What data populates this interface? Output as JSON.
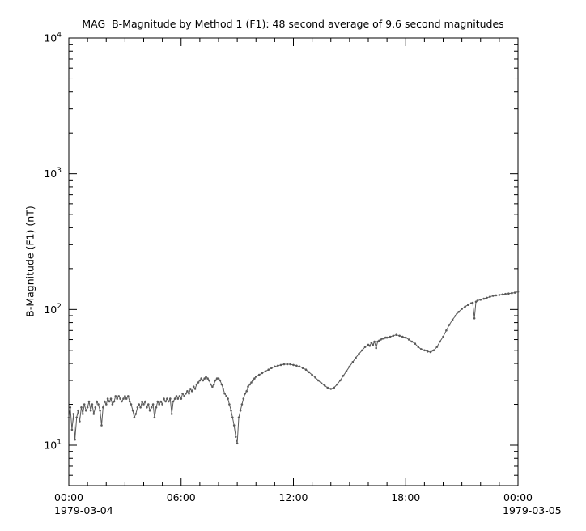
{
  "title": "MAG  B-Magnitude by Method 1 (F1): 48 second average of 9.6 second magnitudes",
  "chart_data": {
    "type": "line",
    "marker": "point",
    "title": "MAG  B-Magnitude by Method 1 (F1): 48 second average of 9.6 second magnitudes",
    "ylabel": "B-Magnitude (F1) (nT)",
    "xlabel": "",
    "x_start_date": "1979-03-04",
    "x_end_date": "1979-03-05",
    "x_unit": "hours since 1979-03-04 00:00",
    "xlim": [
      0,
      24
    ],
    "y_scale": "log",
    "ylim": [
      5,
      10000
    ],
    "grid": "off",
    "series_color": "#5a5a5a",
    "axis_color": "#000000",
    "x_ticks": [
      {
        "t": 0,
        "label": "00:00"
      },
      {
        "t": 6,
        "label": "06:00"
      },
      {
        "t": 12,
        "label": "12:00"
      },
      {
        "t": 18,
        "label": "18:00"
      },
      {
        "t": 24,
        "label": "00:00"
      }
    ],
    "y_ticks": [
      {
        "exp": 1,
        "base": "10"
      },
      {
        "exp": 2,
        "base": "10"
      },
      {
        "exp": 3,
        "base": "10"
      },
      {
        "exp": 4,
        "base": "10"
      }
    ],
    "points": [
      [
        0.0,
        16
      ],
      [
        0.08,
        19
      ],
      [
        0.17,
        13
      ],
      [
        0.25,
        17
      ],
      [
        0.33,
        11
      ],
      [
        0.42,
        16
      ],
      [
        0.5,
        18
      ],
      [
        0.58,
        15
      ],
      [
        0.67,
        19
      ],
      [
        0.75,
        17
      ],
      [
        0.83,
        20
      ],
      [
        0.92,
        18
      ],
      [
        1.0,
        19
      ],
      [
        1.08,
        21
      ],
      [
        1.17,
        18
      ],
      [
        1.25,
        20
      ],
      [
        1.33,
        17
      ],
      [
        1.42,
        19
      ],
      [
        1.5,
        21
      ],
      [
        1.58,
        20
      ],
      [
        1.67,
        18
      ],
      [
        1.75,
        14
      ],
      [
        1.83,
        19
      ],
      [
        1.92,
        21
      ],
      [
        2.0,
        20
      ],
      [
        2.08,
        22
      ],
      [
        2.17,
        21
      ],
      [
        2.25,
        22
      ],
      [
        2.33,
        20
      ],
      [
        2.42,
        21
      ],
      [
        2.5,
        23
      ],
      [
        2.58,
        22
      ],
      [
        2.67,
        23
      ],
      [
        2.75,
        22
      ],
      [
        2.83,
        21
      ],
      [
        2.92,
        22
      ],
      [
        3.0,
        23
      ],
      [
        3.08,
        22
      ],
      [
        3.17,
        23
      ],
      [
        3.25,
        21
      ],
      [
        3.33,
        20
      ],
      [
        3.42,
        18
      ],
      [
        3.5,
        16
      ],
      [
        3.58,
        17
      ],
      [
        3.67,
        19
      ],
      [
        3.75,
        20
      ],
      [
        3.83,
        19
      ],
      [
        3.92,
        21
      ],
      [
        4.0,
        20
      ],
      [
        4.08,
        21
      ],
      [
        4.17,
        19
      ],
      [
        4.25,
        20
      ],
      [
        4.33,
        18
      ],
      [
        4.42,
        19
      ],
      [
        4.5,
        20
      ],
      [
        4.58,
        16
      ],
      [
        4.67,
        19
      ],
      [
        4.75,
        21
      ],
      [
        4.83,
        20
      ],
      [
        4.92,
        21
      ],
      [
        5.0,
        20
      ],
      [
        5.08,
        22
      ],
      [
        5.17,
        21
      ],
      [
        5.25,
        22
      ],
      [
        5.33,
        21
      ],
      [
        5.42,
        22
      ],
      [
        5.5,
        17
      ],
      [
        5.58,
        21
      ],
      [
        5.67,
        22
      ],
      [
        5.75,
        23
      ],
      [
        5.83,
        22
      ],
      [
        5.92,
        23
      ],
      [
        6.0,
        22
      ],
      [
        6.08,
        24
      ],
      [
        6.17,
        23
      ],
      [
        6.25,
        24
      ],
      [
        6.33,
        25
      ],
      [
        6.42,
        24
      ],
      [
        6.5,
        26
      ],
      [
        6.58,
        25
      ],
      [
        6.67,
        27
      ],
      [
        6.75,
        26
      ],
      [
        6.83,
        28
      ],
      [
        6.92,
        29
      ],
      [
        7.0,
        30
      ],
      [
        7.08,
        31
      ],
      [
        7.17,
        30
      ],
      [
        7.25,
        31
      ],
      [
        7.33,
        32
      ],
      [
        7.42,
        31
      ],
      [
        7.5,
        30
      ],
      [
        7.58,
        28
      ],
      [
        7.67,
        27
      ],
      [
        7.75,
        28
      ],
      [
        7.83,
        30
      ],
      [
        7.92,
        31
      ],
      [
        8.0,
        31
      ],
      [
        8.08,
        30
      ],
      [
        8.17,
        28
      ],
      [
        8.25,
        26
      ],
      [
        8.33,
        24
      ],
      [
        8.42,
        23
      ],
      [
        8.5,
        22
      ],
      [
        8.58,
        20
      ],
      [
        8.67,
        18
      ],
      [
        8.75,
        16
      ],
      [
        8.83,
        14
      ],
      [
        8.92,
        11.5
      ],
      [
        9.0,
        10.3
      ],
      [
        9.08,
        16
      ],
      [
        9.17,
        18
      ],
      [
        9.25,
        20
      ],
      [
        9.33,
        22
      ],
      [
        9.42,
        24
      ],
      [
        9.5,
        25
      ],
      [
        9.58,
        27
      ],
      [
        9.67,
        28
      ],
      [
        9.75,
        29
      ],
      [
        9.83,
        30
      ],
      [
        9.92,
        31
      ],
      [
        10.0,
        32
      ],
      [
        10.17,
        33
      ],
      [
        10.33,
        34
      ],
      [
        10.5,
        35
      ],
      [
        10.67,
        36
      ],
      [
        10.83,
        37
      ],
      [
        11.0,
        38
      ],
      [
        11.17,
        38.5
      ],
      [
        11.33,
        39
      ],
      [
        11.5,
        39.5
      ],
      [
        11.67,
        39.5
      ],
      [
        11.83,
        39.5
      ],
      [
        12.0,
        39
      ],
      [
        12.17,
        38.5
      ],
      [
        12.33,
        38
      ],
      [
        12.5,
        37
      ],
      [
        12.67,
        36
      ],
      [
        12.83,
        34.5
      ],
      [
        13.0,
        33
      ],
      [
        13.17,
        31.5
      ],
      [
        13.33,
        30
      ],
      [
        13.5,
        28.5
      ],
      [
        13.67,
        27.5
      ],
      [
        13.83,
        26.5
      ],
      [
        14.0,
        26
      ],
      [
        14.17,
        26.5
      ],
      [
        14.33,
        28
      ],
      [
        14.5,
        30
      ],
      [
        14.67,
        32.5
      ],
      [
        14.83,
        35
      ],
      [
        15.0,
        38
      ],
      [
        15.17,
        41
      ],
      [
        15.33,
        44
      ],
      [
        15.5,
        47
      ],
      [
        15.67,
        50
      ],
      [
        15.83,
        53
      ],
      [
        16.0,
        55
      ],
      [
        16.08,
        54
      ],
      [
        16.17,
        57
      ],
      [
        16.25,
        55
      ],
      [
        16.33,
        58
      ],
      [
        16.42,
        52
      ],
      [
        16.5,
        58
      ],
      [
        16.58,
        59
      ],
      [
        16.67,
        60
      ],
      [
        16.75,
        61
      ],
      [
        16.83,
        61
      ],
      [
        16.92,
        62
      ],
      [
        17.0,
        62
      ],
      [
        17.17,
        63
      ],
      [
        17.33,
        64
      ],
      [
        17.5,
        65
      ],
      [
        17.67,
        64
      ],
      [
        17.83,
        63
      ],
      [
        18.0,
        62
      ],
      [
        18.17,
        60
      ],
      [
        18.33,
        58
      ],
      [
        18.5,
        56
      ],
      [
        18.67,
        53
      ],
      [
        18.83,
        51
      ],
      [
        19.0,
        50
      ],
      [
        19.17,
        49
      ],
      [
        19.33,
        48.5
      ],
      [
        19.5,
        50
      ],
      [
        19.67,
        53
      ],
      [
        19.83,
        58
      ],
      [
        20.0,
        63
      ],
      [
        20.17,
        70
      ],
      [
        20.33,
        77
      ],
      [
        20.5,
        84
      ],
      [
        20.67,
        90
      ],
      [
        20.83,
        96
      ],
      [
        21.0,
        101
      ],
      [
        21.17,
        105
      ],
      [
        21.33,
        108
      ],
      [
        21.5,
        111
      ],
      [
        21.58,
        112
      ],
      [
        21.67,
        86
      ],
      [
        21.75,
        114
      ],
      [
        21.83,
        116
      ],
      [
        22.0,
        118
      ],
      [
        22.17,
        120
      ],
      [
        22.33,
        122
      ],
      [
        22.5,
        124
      ],
      [
        22.67,
        126
      ],
      [
        22.83,
        127
      ],
      [
        23.0,
        128
      ],
      [
        23.17,
        129
      ],
      [
        23.33,
        130
      ],
      [
        23.5,
        131
      ],
      [
        23.67,
        132
      ],
      [
        23.83,
        133
      ],
      [
        24.0,
        135
      ]
    ]
  }
}
